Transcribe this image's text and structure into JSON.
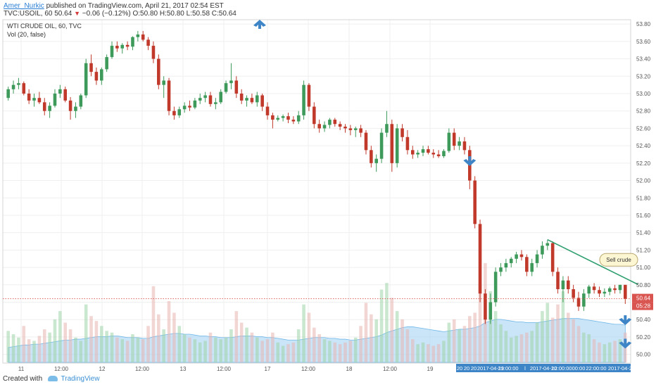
{
  "header": {
    "author": "Amer_Nurkic",
    "published": "published on TradingView.com, April 21, 2017 02:54 EST",
    "symbol": "TVC:USOIL, 60",
    "last": "50.64",
    "change": "−0.06 (−0.12%)",
    "ohlc": "O:50.80 H:50.80 L:50.58 C:50.64"
  },
  "legend": {
    "title": "WTI CRUDE OIL, 60, TVC",
    "volume": "Vol (20, false)"
  },
  "annotation": {
    "text": "Sell crude"
  },
  "price_label": "50.64",
  "time_label": "05:28",
  "footer": {
    "created": "Created with",
    "brand": "TradingView"
  },
  "colors": {
    "up": "#3d9a5a",
    "down": "#c0392b",
    "arrow": "#3d85c6",
    "trendline": "#2e9e6e",
    "volume_ma": "#9fd0f2"
  },
  "chart_data": {
    "type": "candlestick",
    "y_axis": {
      "min": 49.9,
      "max": 53.85,
      "ticks": [
        "53.80",
        "53.60",
        "53.40",
        "53.20",
        "53.00",
        "52.80",
        "52.60",
        "52.40",
        "52.20",
        "52.00",
        "51.80",
        "51.60",
        "51.40",
        "51.20",
        "51.00",
        "50.80",
        "50.60",
        "50.40",
        "50.20",
        "50.00"
      ]
    },
    "x_axis": {
      "ticks": [
        "11",
        "12:00",
        "12",
        "12:00",
        "13",
        "12:00",
        "17",
        "12:00",
        "18",
        "12:00",
        "19"
      ],
      "compressed_ticks": [
        "20",
        "20",
        "20",
        "2017-04-19",
        "21:00:00",
        "l",
        "2017-04-20",
        "12:00:00",
        "00:00",
        "22:00:00",
        "2017-04-21"
      ]
    },
    "candles": [
      [
        52.95,
        53.08,
        52.92,
        53.05
      ],
      [
        53.05,
        53.15,
        53.0,
        53.1
      ],
      [
        53.1,
        53.18,
        53.05,
        53.12
      ],
      [
        53.12,
        53.14,
        52.98,
        53.0
      ],
      [
        53.0,
        53.05,
        52.88,
        52.92
      ],
      [
        52.92,
        53.0,
        52.85,
        52.95
      ],
      [
        52.95,
        53.02,
        52.88,
        52.9
      ],
      [
        52.9,
        52.95,
        52.75,
        52.8
      ],
      [
        52.8,
        52.9,
        52.72,
        52.86
      ],
      [
        52.86,
        53.05,
        52.84,
        53.0
      ],
      [
        53.0,
        53.1,
        52.95,
        53.05
      ],
      [
        53.05,
        53.08,
        52.9,
        52.92
      ],
      [
        52.92,
        52.96,
        52.7,
        52.8
      ],
      [
        52.8,
        52.9,
        52.72,
        52.85
      ],
      [
        52.85,
        53.0,
        52.82,
        52.98
      ],
      [
        52.98,
        53.4,
        52.95,
        53.35
      ],
      [
        53.35,
        53.45,
        53.2,
        53.25
      ],
      [
        53.25,
        53.3,
        53.1,
        53.15
      ],
      [
        53.15,
        53.3,
        53.1,
        53.28
      ],
      [
        53.28,
        53.45,
        53.25,
        53.42
      ],
      [
        53.42,
        53.6,
        53.4,
        53.55
      ],
      [
        53.55,
        53.6,
        53.48,
        53.52
      ],
      [
        53.52,
        53.58,
        53.46,
        53.56
      ],
      [
        53.56,
        53.6,
        53.5,
        53.54
      ],
      [
        53.54,
        53.66,
        53.5,
        53.65
      ],
      [
        53.65,
        53.72,
        53.6,
        53.68
      ],
      [
        53.68,
        53.72,
        53.6,
        53.62
      ],
      [
        53.62,
        53.65,
        53.5,
        53.55
      ],
      [
        53.55,
        53.6,
        53.35,
        53.4
      ],
      [
        53.4,
        53.45,
        53.05,
        53.1
      ],
      [
        53.1,
        53.2,
        52.95,
        53.15
      ],
      [
        53.15,
        53.18,
        52.75,
        52.8
      ],
      [
        52.8,
        52.85,
        52.7,
        52.75
      ],
      [
        52.75,
        52.85,
        52.72,
        52.82
      ],
      [
        52.82,
        52.9,
        52.78,
        52.86
      ],
      [
        52.86,
        52.92,
        52.8,
        52.84
      ],
      [
        52.84,
        52.95,
        52.82,
        52.92
      ],
      [
        52.92,
        53.0,
        52.88,
        52.95
      ],
      [
        52.95,
        53.02,
        52.9,
        52.98
      ],
      [
        52.98,
        53.02,
        52.85,
        52.88
      ],
      [
        52.88,
        52.95,
        52.82,
        52.9
      ],
      [
        52.9,
        53.05,
        52.88,
        53.02
      ],
      [
        53.02,
        53.15,
        53.0,
        53.12
      ],
      [
        53.12,
        53.35,
        53.05,
        53.15
      ],
      [
        53.15,
        53.2,
        52.95,
        53.0
      ],
      [
        53.0,
        53.05,
        52.88,
        52.92
      ],
      [
        52.92,
        52.98,
        52.85,
        52.95
      ],
      [
        52.95,
        53.0,
        52.88,
        52.9
      ],
      [
        52.9,
        53.02,
        52.85,
        52.98
      ],
      [
        52.98,
        53.0,
        52.8,
        52.85
      ],
      [
        52.85,
        52.9,
        52.7,
        52.75
      ],
      [
        52.75,
        52.78,
        52.6,
        52.7
      ],
      [
        52.7,
        52.75,
        52.68,
        52.72
      ],
      [
        52.72,
        52.76,
        52.68,
        52.74
      ],
      [
        52.74,
        52.78,
        52.66,
        52.7
      ],
      [
        52.7,
        52.74,
        52.65,
        52.68
      ],
      [
        52.68,
        52.8,
        52.65,
        52.75
      ],
      [
        52.75,
        53.15,
        52.7,
        53.1
      ],
      [
        53.1,
        53.12,
        52.8,
        52.85
      ],
      [
        52.85,
        52.9,
        52.6,
        52.65
      ],
      [
        52.65,
        52.7,
        52.55,
        52.6
      ],
      [
        52.6,
        52.68,
        52.56,
        52.64
      ],
      [
        52.64,
        52.72,
        52.6,
        52.7
      ],
      [
        52.7,
        52.72,
        52.62,
        52.65
      ],
      [
        52.65,
        52.68,
        52.58,
        52.62
      ],
      [
        52.62,
        52.65,
        52.55,
        52.6
      ],
      [
        52.6,
        52.64,
        52.52,
        52.58
      ],
      [
        52.58,
        52.62,
        52.5,
        52.6
      ],
      [
        52.6,
        52.64,
        52.5,
        52.55
      ],
      [
        52.55,
        52.58,
        52.3,
        52.35
      ],
      [
        52.35,
        52.4,
        52.15,
        52.2
      ],
      [
        52.2,
        52.3,
        52.1,
        52.25
      ],
      [
        52.25,
        52.6,
        52.2,
        52.55
      ],
      [
        52.55,
        52.8,
        52.5,
        52.65
      ],
      [
        52.65,
        52.7,
        52.1,
        52.2
      ],
      [
        52.2,
        52.65,
        52.15,
        52.6
      ],
      [
        52.6,
        52.65,
        52.45,
        52.5
      ],
      [
        52.5,
        52.58,
        52.3,
        52.35
      ],
      [
        52.35,
        52.4,
        52.25,
        52.3
      ],
      [
        52.3,
        52.35,
        52.26,
        52.32
      ],
      [
        52.32,
        52.4,
        52.28,
        52.36
      ],
      [
        52.36,
        52.4,
        52.3,
        52.32
      ],
      [
        52.32,
        52.36,
        52.26,
        52.3
      ],
      [
        52.3,
        52.35,
        52.26,
        52.28
      ],
      [
        52.28,
        52.36,
        52.26,
        52.34
      ],
      [
        52.34,
        52.6,
        52.32,
        52.55
      ],
      [
        52.55,
        52.6,
        52.35,
        52.4
      ],
      [
        52.4,
        52.5,
        52.35,
        52.45
      ],
      [
        52.45,
        52.5,
        52.3,
        52.35
      ],
      [
        52.35,
        52.4,
        51.9,
        52.0
      ],
      [
        52.0,
        52.05,
        51.45,
        51.5
      ],
      [
        51.5,
        51.55,
        50.6,
        50.7
      ],
      [
        50.7,
        50.75,
        50.35,
        50.4
      ],
      [
        50.4,
        50.7,
        50.35,
        50.6
      ],
      [
        50.6,
        51.0,
        50.55,
        50.95
      ],
      [
        50.95,
        51.05,
        50.9,
        51.0
      ],
      [
        51.0,
        51.1,
        50.95,
        51.05
      ],
      [
        51.05,
        51.12,
        51.0,
        51.1
      ],
      [
        51.1,
        51.18,
        51.05,
        51.15
      ],
      [
        51.15,
        51.2,
        51.08,
        51.12
      ],
      [
        51.12,
        51.15,
        50.9,
        50.95
      ],
      [
        50.95,
        51.1,
        50.9,
        51.05
      ],
      [
        51.05,
        51.2,
        51.0,
        51.15
      ],
      [
        51.15,
        51.3,
        51.1,
        51.25
      ],
      [
        51.25,
        51.32,
        51.2,
        51.28
      ],
      [
        51.28,
        51.3,
        50.9,
        50.95
      ],
      [
        50.95,
        51.0,
        50.7,
        50.75
      ],
      [
        50.75,
        50.9,
        50.6,
        50.85
      ],
      [
        50.85,
        50.9,
        50.7,
        50.75
      ],
      [
        50.75,
        50.8,
        50.6,
        50.65
      ],
      [
        50.65,
        50.72,
        50.5,
        50.55
      ],
      [
        50.55,
        50.75,
        50.5,
        50.7
      ],
      [
        50.7,
        50.8,
        50.65,
        50.78
      ],
      [
        50.78,
        50.82,
        50.7,
        50.74
      ],
      [
        50.74,
        50.78,
        50.66,
        50.7
      ],
      [
        50.7,
        50.76,
        50.66,
        50.72
      ],
      [
        50.72,
        50.78,
        50.68,
        50.76
      ],
      [
        50.76,
        50.8,
        50.7,
        50.74
      ],
      [
        50.74,
        50.8,
        50.7,
        50.8
      ],
      [
        50.8,
        50.8,
        50.58,
        50.64
      ]
    ],
    "volumes": [
      38,
      34,
      30,
      44,
      28,
      26,
      32,
      40,
      36,
      52,
      62,
      48,
      40,
      30,
      26,
      70,
      56,
      50,
      44,
      38,
      36,
      30,
      28,
      26,
      34,
      30,
      28,
      44,
      92,
      58,
      40,
      74,
      60,
      44,
      34,
      30,
      28,
      24,
      26,
      36,
      30,
      28,
      30,
      40,
      62,
      48,
      42,
      36,
      30,
      26,
      28,
      36,
      24,
      20,
      22,
      24,
      40,
      70,
      60,
      42,
      34,
      28,
      26,
      24,
      22,
      24,
      26,
      30,
      44,
      72,
      58,
      52,
      88,
      96,
      78,
      62,
      52,
      40,
      28,
      22,
      24,
      22,
      20,
      22,
      26,
      48,
      52,
      40,
      44,
      56,
      60,
      96,
      120,
      86,
      62,
      46,
      38,
      30,
      32,
      34,
      36,
      38,
      48,
      62,
      72,
      54,
      70,
      86,
      60,
      52,
      44,
      36,
      34,
      28,
      24,
      22,
      24,
      26,
      28,
      36
    ],
    "volume_ma": [
      18,
      19,
      20,
      21,
      21,
      22,
      22,
      23,
      24,
      25,
      26,
      27,
      27,
      28,
      28,
      29,
      30,
      31,
      31,
      31,
      32,
      32,
      31,
      30,
      30,
      30,
      29,
      29,
      31,
      32,
      33,
      34,
      35,
      35,
      34,
      34,
      33,
      32,
      32,
      31,
      31,
      30,
      30,
      30,
      31,
      32,
      32,
      32,
      31,
      31,
      30,
      30,
      29,
      28,
      27,
      27,
      27,
      28,
      29,
      30,
      30,
      30,
      29,
      29,
      28,
      28,
      27,
      27,
      28,
      29,
      30,
      31,
      33,
      36,
      38,
      40,
      42,
      43,
      43,
      42,
      41,
      40,
      39,
      38,
      37,
      38,
      39,
      40,
      40,
      41,
      42,
      44,
      48,
      50,
      52,
      52,
      51,
      50,
      49,
      49,
      48,
      48,
      48,
      49,
      50,
      51,
      52,
      53,
      53,
      53,
      53,
      52,
      51,
      50,
      49,
      48,
      47,
      46,
      46,
      45
    ],
    "volume_scale_max": 125,
    "trendline": {
      "from": [
        104,
        51.32
      ],
      "to": [
        119,
        50.74
      ]
    },
    "last_price": 50.64,
    "arrows": [
      {
        "dir": "up",
        "x": 48.5,
        "price": 53.85
      },
      {
        "dir": "down",
        "x": 89,
        "price": 52.28
      },
      {
        "dir": "down",
        "x": 119,
        "price": 50.45
      },
      {
        "dir": "down",
        "x": 119,
        "price": 50.18
      }
    ]
  }
}
